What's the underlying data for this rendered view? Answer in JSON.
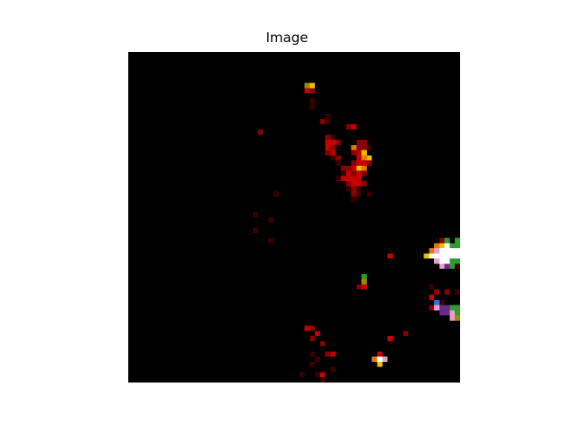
{
  "figure": {
    "title": "Image",
    "background": "#000000",
    "grid": {
      "cols": 64,
      "rows": 64
    }
  },
  "palette": {
    "dark_red": "#3a0000",
    "red": "#8a0000",
    "bright_red": "#c40000",
    "orange": "#e07a00",
    "yellow": "#f0c000",
    "green": "#2e9b2e",
    "white": "#ffffff",
    "pink": "#e8a0c8",
    "blue": "#2a70d8",
    "purple": "#6a2a8a",
    "olive": "#9a8a00"
  }
}
